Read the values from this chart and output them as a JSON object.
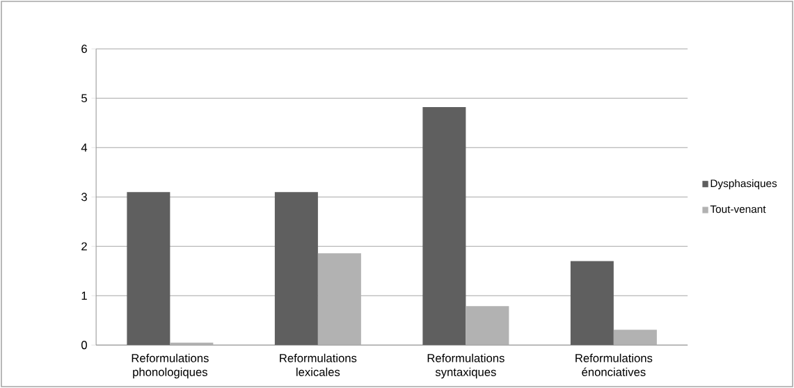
{
  "chart_data": {
    "type": "bar",
    "categories": [
      "Reformulations phonologiques",
      "Reformulations lexicales",
      "Reformulations syntaxiques",
      "Reformulations énonciatives"
    ],
    "series": [
      {
        "name": "Dysphasiques",
        "color": "#5f5f5f",
        "values": [
          3.1,
          3.1,
          4.82,
          1.7
        ]
      },
      {
        "name": "Tout-venant",
        "color": "#b2b2b2",
        "values": [
          0.05,
          1.86,
          0.79,
          0.31
        ]
      }
    ],
    "ylim": [
      0,
      6
    ],
    "yticks": [
      0,
      1,
      2,
      3,
      4,
      5,
      6
    ],
    "grid": "y",
    "legend": "right"
  }
}
